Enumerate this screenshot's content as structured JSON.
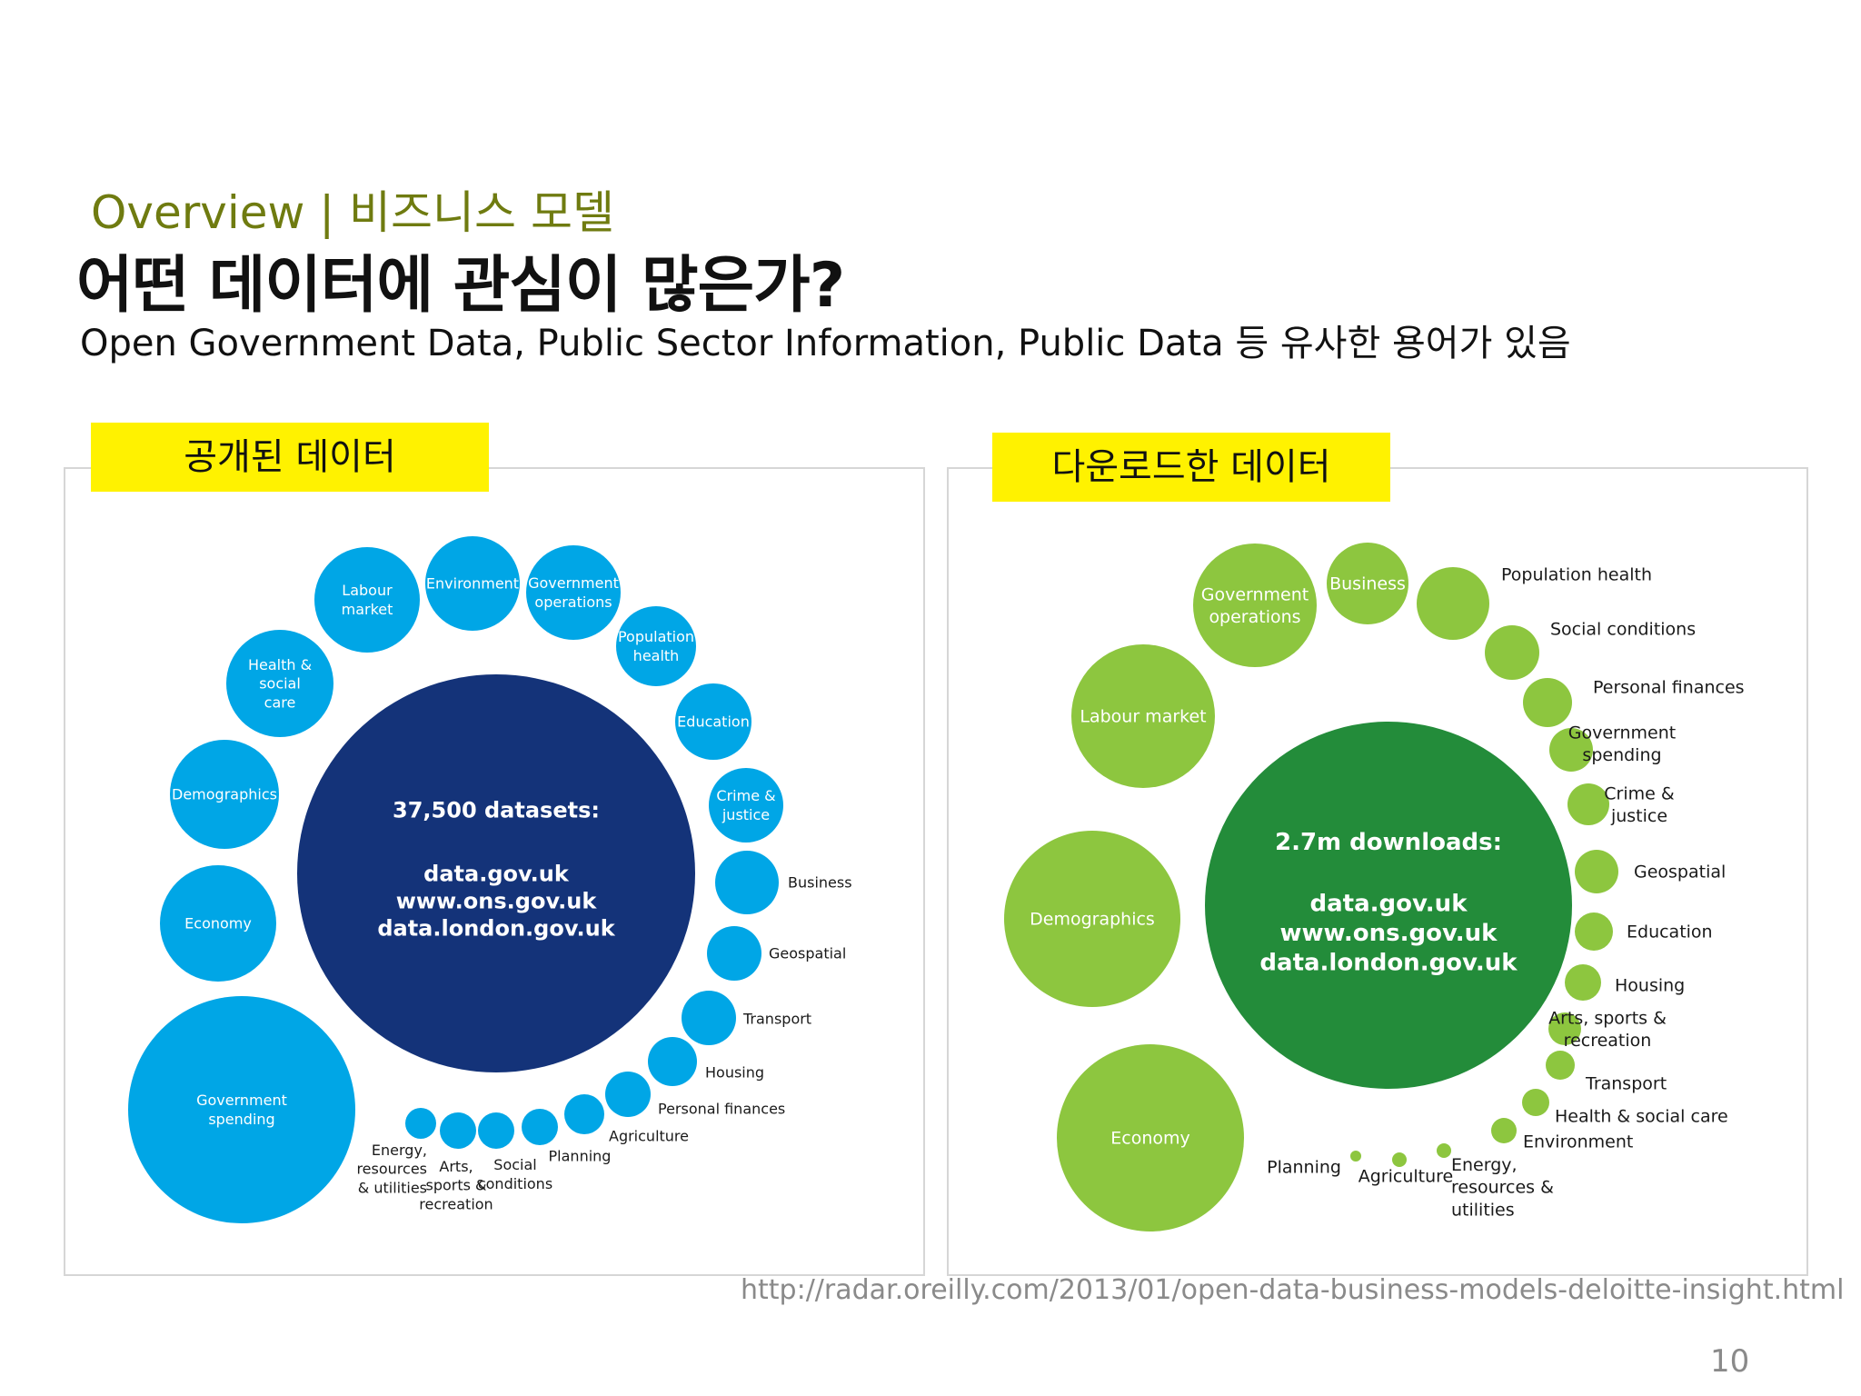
{
  "header": {
    "kicker_en": "Overview",
    "kicker_sep": " | ",
    "kicker_ko": "비즈니스 모델",
    "title": "어떤 데이터에 관심이 많은가?",
    "subtitle": "Open Government Data, Public Sector Information, Public Data 등 유사한 용어가 있음"
  },
  "left_panel": {
    "tag": "공개된 데이터",
    "center": [
      "37,500 datasets:",
      "data.gov.uk",
      "www.ons.gov.uk",
      "data.london.gov.uk"
    ],
    "categories": [
      [
        "Labour",
        "market"
      ],
      [
        "Environment"
      ],
      [
        "Government",
        "operations"
      ],
      [
        "Population",
        "health"
      ],
      [
        "Health &",
        "social",
        "care"
      ],
      [
        "Education"
      ],
      [
        "Demographics"
      ],
      [
        "Crime &",
        "justice"
      ],
      [
        "Economy"
      ],
      [
        "Government",
        "spending"
      ],
      [
        "Business"
      ],
      [
        "Geospatial"
      ],
      [
        "Transport"
      ],
      [
        "Housing"
      ],
      [
        "Personal finances"
      ],
      [
        "Agriculture"
      ],
      [
        "Planning"
      ],
      [
        "Social",
        "conditions"
      ],
      [
        "Arts,",
        "sports &",
        "recreation"
      ],
      [
        "Energy,",
        "resources",
        "& utilities"
      ]
    ],
    "colors": {
      "center": "#143379",
      "bubble": "#00a6e6",
      "text": "#ffffff",
      "label": "#1a1a1a"
    }
  },
  "right_panel": {
    "tag": "다운로드한 데이터",
    "center": [
      "2.7m downloads:",
      "data.gov.uk",
      "www.ons.gov.uk",
      "data.london.gov.uk"
    ],
    "categories": [
      [
        "Government",
        "operations"
      ],
      [
        "Business"
      ],
      [
        "Labour market"
      ],
      [
        "Population health"
      ],
      [
        "Social conditions"
      ],
      [
        "Personal finances"
      ],
      [
        "Government",
        "spending"
      ],
      [
        "Demographics"
      ],
      [
        "Crime &",
        "justice"
      ],
      [
        "Geospatial"
      ],
      [
        "Education"
      ],
      [
        "Housing"
      ],
      [
        "Arts, sports &",
        "recreation"
      ],
      [
        "Economy"
      ],
      [
        "Transport"
      ],
      [
        "Health & social care"
      ],
      [
        "Environment"
      ],
      [
        "Planning"
      ],
      [
        "Agriculture"
      ],
      [
        "Energy,",
        "resources &",
        "utilities"
      ]
    ],
    "colors": {
      "center": "#238c3a",
      "bubble": "#8dc63f",
      "text": "#ffffff",
      "label": "#1a1a1a"
    }
  },
  "footer": {
    "source": "http://radar.oreilly.com/2013/01/open-data-business-models-deloitte-insight.html",
    "page_number": "10"
  }
}
